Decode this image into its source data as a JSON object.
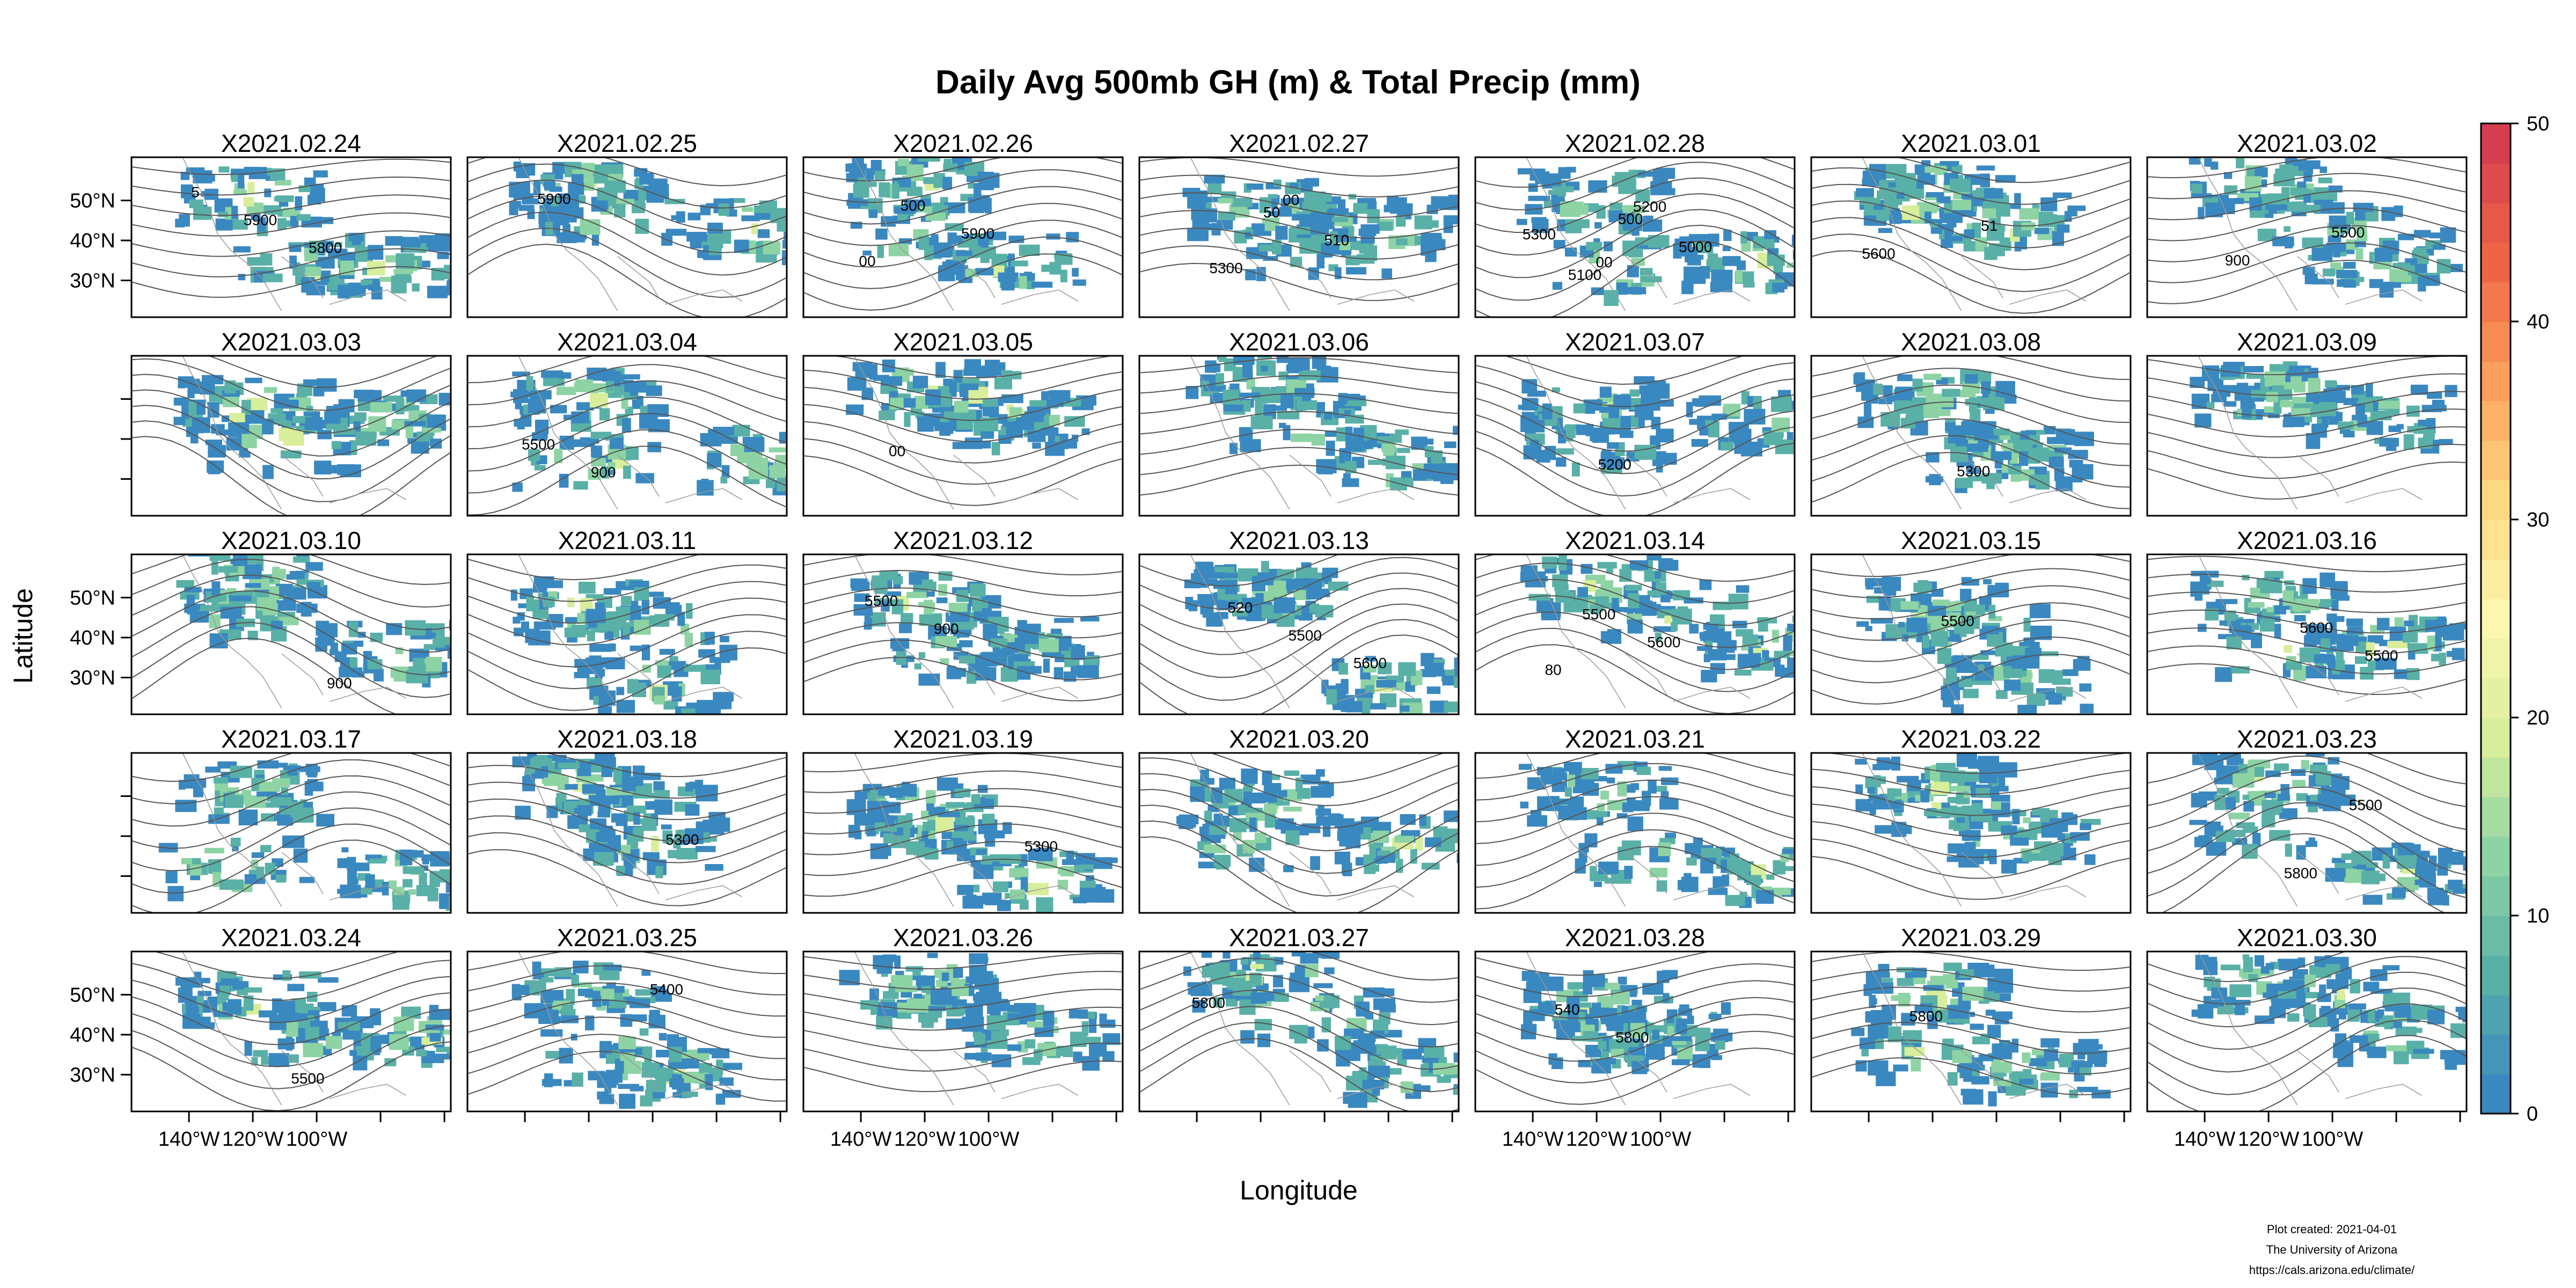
{
  "title": "Daily Avg 500mb GH (m) & Total Precip (mm)",
  "x_axis_title": "Longitude",
  "y_axis_title": "Latitude",
  "lon_ticks": [
    "140°W",
    "120°W",
    "100°W"
  ],
  "lat_ticks": [
    "50°N",
    "40°N",
    "30°N"
  ],
  "colorbar": {
    "min": 0,
    "max": 50,
    "ticks": [
      0,
      10,
      20,
      30,
      40,
      50
    ],
    "colors": [
      "#3a88c0",
      "#59b0a7",
      "#8dd3a4",
      "#d8ee9b",
      "#fbf7b0",
      "#fed980",
      "#fc9e5c",
      "#ee6545",
      "#d53e4f"
    ]
  },
  "panels": [
    {
      "date": "X2021.02.24",
      "contour_labels": [
        "5",
        "5900",
        "5800"
      ]
    },
    {
      "date": "X2021.02.25",
      "contour_labels": [
        "5900"
      ]
    },
    {
      "date": "X2021.02.26",
      "contour_labels": [
        "500",
        "5900",
        "00"
      ]
    },
    {
      "date": "X2021.02.27",
      "contour_labels": [
        "50",
        "510",
        "5300",
        "00"
      ]
    },
    {
      "date": "X2021.02.28",
      "contour_labels": [
        "500",
        "5000",
        "5100",
        "5200",
        "5300",
        "00"
      ]
    },
    {
      "date": "X2021.03.01",
      "contour_labels": [
        "51",
        "5600"
      ]
    },
    {
      "date": "X2021.03.02",
      "contour_labels": [
        "5500",
        "900"
      ]
    },
    {
      "date": "X2021.03.03",
      "contour_labels": []
    },
    {
      "date": "X2021.03.04",
      "contour_labels": [
        "5500",
        "900"
      ]
    },
    {
      "date": "X2021.03.05",
      "contour_labels": [
        "00"
      ]
    },
    {
      "date": "X2021.03.06",
      "contour_labels": []
    },
    {
      "date": "X2021.03.07",
      "contour_labels": [
        "5200"
      ]
    },
    {
      "date": "X2021.03.08",
      "contour_labels": [
        "5300"
      ]
    },
    {
      "date": "X2021.03.09",
      "contour_labels": []
    },
    {
      "date": "X2021.03.10",
      "contour_labels": [
        "900"
      ]
    },
    {
      "date": "X2021.03.11",
      "contour_labels": []
    },
    {
      "date": "X2021.03.12",
      "contour_labels": [
        "5500",
        "900"
      ]
    },
    {
      "date": "X2021.03.13",
      "contour_labels": [
        "520",
        "5500",
        "5600"
      ]
    },
    {
      "date": "X2021.03.14",
      "contour_labels": [
        "5500",
        "5600",
        "80"
      ]
    },
    {
      "date": "X2021.03.15",
      "contour_labels": [
        "5500"
      ]
    },
    {
      "date": "X2021.03.16",
      "contour_labels": [
        "5600",
        "5500"
      ]
    },
    {
      "date": "X2021.03.17",
      "contour_labels": []
    },
    {
      "date": "X2021.03.18",
      "contour_labels": [
        "5300"
      ]
    },
    {
      "date": "X2021.03.19",
      "contour_labels": [
        "5300"
      ]
    },
    {
      "date": "X2021.03.20",
      "contour_labels": []
    },
    {
      "date": "X2021.03.21",
      "contour_labels": []
    },
    {
      "date": "X2021.03.22",
      "contour_labels": []
    },
    {
      "date": "X2021.03.23",
      "contour_labels": [
        "5800",
        "5500"
      ]
    },
    {
      "date": "X2021.03.24",
      "contour_labels": [
        "5500"
      ]
    },
    {
      "date": "X2021.03.25",
      "contour_labels": [
        "5400"
      ]
    },
    {
      "date": "X2021.03.26",
      "contour_labels": []
    },
    {
      "date": "X2021.03.27",
      "contour_labels": [
        "5800"
      ]
    },
    {
      "date": "X2021.03.28",
      "contour_labels": [
        "540",
        "5800"
      ]
    },
    {
      "date": "X2021.03.29",
      "contour_labels": [
        "5800"
      ]
    },
    {
      "date": "X2021.03.30",
      "contour_labels": []
    }
  ],
  "footer": {
    "line1": "Plot created: 2021-04-01",
    "line2": "The University of Arizona",
    "line3": "https://cals.arizona.edu/climate/"
  }
}
